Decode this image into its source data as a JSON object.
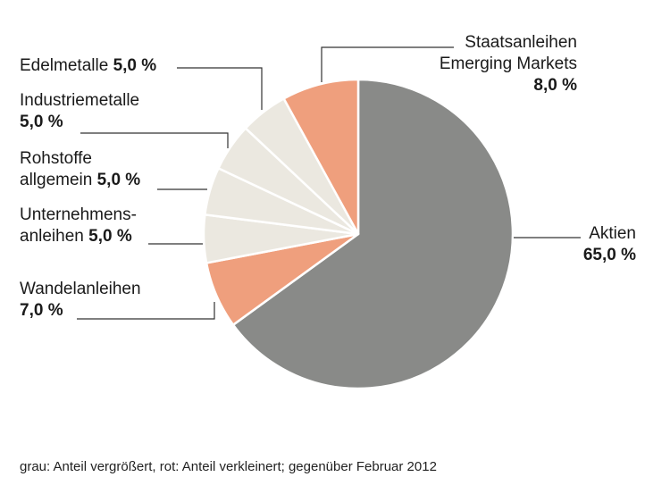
{
  "chart_data": {
    "type": "pie",
    "slices": [
      {
        "label": "Aktien",
        "value": 65.0,
        "value_text": "65,0 %",
        "color": "#898a88"
      },
      {
        "label": "Wandelanleihen",
        "value": 7.0,
        "value_text": "7,0 %",
        "color": "#ef9f7d"
      },
      {
        "label": "Unternehmensanleihen",
        "value": 5.0,
        "value_text": "5,0 %",
        "color": "#ebe8e0"
      },
      {
        "label": "Rohstoffe allgemein",
        "value": 5.0,
        "value_text": "5,0 %",
        "color": "#ebe8e0"
      },
      {
        "label": "Industriemetalle",
        "value": 5.0,
        "value_text": "5,0 %",
        "color": "#ebe8e0"
      },
      {
        "label": "Edelmetalle",
        "value": 5.0,
        "value_text": "5,0 %",
        "color": "#ebe8e0"
      },
      {
        "label": "Staatsanleihen Emerging Markets",
        "value": 8.0,
        "value_text": "8,0 %",
        "color": "#ef9f7d"
      }
    ],
    "labels": {
      "edelmetalle": {
        "name": "Edelmetalle",
        "value": "5,0 %"
      },
      "industriemetalle": {
        "name": "Industriemetalle",
        "value": "5,0 %"
      },
      "rohstoffe": {
        "line1": "Rohstoffe",
        "line2": "allgemein",
        "value": "5,0 %"
      },
      "unternehmens": {
        "line1": "Unternehmens-",
        "line2": "anleihen",
        "value": "5,0 %"
      },
      "wandel": {
        "name": "Wandelanleihen",
        "value": "7,0 %"
      },
      "staats": {
        "line1": "Staatsanleihen",
        "line2": "Emerging Markets",
        "value": "8,0 %"
      },
      "aktien": {
        "name": "Aktien",
        "value": "65,0 %"
      }
    },
    "footnote": "grau: Anteil vergrößert, rot: Anteil verkleinert; gegenüber Februar 2012"
  },
  "colors": {
    "increased": "#898a88",
    "decreased": "#ef9f7d",
    "neutral": "#ebe8e0",
    "leader": "#333333"
  }
}
